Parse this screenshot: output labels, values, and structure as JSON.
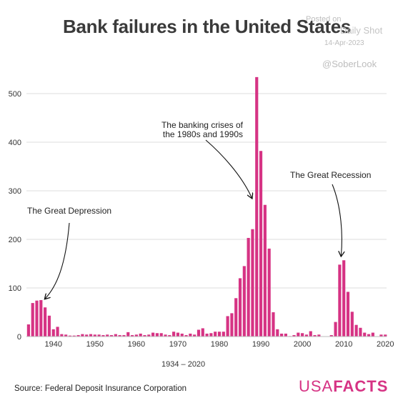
{
  "chart_data": {
    "type": "bar",
    "title": "Bank failures in the United States",
    "xlabel": "1934 – 2020",
    "ylabel": "",
    "ylim": [
      0,
      530
    ],
    "xlim": [
      1934,
      2020
    ],
    "yticks": [
      0,
      100,
      200,
      300,
      400,
      500
    ],
    "xticks": [
      1940,
      1950,
      1960,
      1970,
      1980,
      1990,
      2000,
      2010,
      2020
    ],
    "grid": true,
    "bar_color": "#d63384",
    "x": [
      1934,
      1935,
      1936,
      1937,
      1938,
      1939,
      1940,
      1941,
      1942,
      1943,
      1944,
      1945,
      1946,
      1947,
      1948,
      1949,
      1950,
      1951,
      1952,
      1953,
      1954,
      1955,
      1956,
      1957,
      1958,
      1959,
      1960,
      1961,
      1962,
      1963,
      1964,
      1965,
      1966,
      1967,
      1968,
      1969,
      1970,
      1971,
      1972,
      1973,
      1974,
      1975,
      1976,
      1977,
      1978,
      1979,
      1980,
      1981,
      1982,
      1983,
      1984,
      1985,
      1986,
      1987,
      1988,
      1989,
      1990,
      1991,
      1992,
      1993,
      1994,
      1995,
      1996,
      1997,
      1998,
      1999,
      2000,
      2001,
      2002,
      2003,
      2004,
      2005,
      2006,
      2007,
      2008,
      2009,
      2010,
      2011,
      2012,
      2013,
      2014,
      2015,
      2016,
      2017,
      2018,
      2019,
      2020
    ],
    "values": [
      25,
      69,
      74,
      75,
      60,
      43,
      15,
      20,
      5,
      4,
      2,
      2,
      3,
      5,
      4,
      5,
      4,
      4,
      3,
      4,
      3,
      5,
      3,
      3,
      9,
      3,
      4,
      6,
      3,
      4,
      8,
      7,
      7,
      4,
      3,
      10,
      8,
      6,
      3,
      6,
      4,
      14,
      17,
      6,
      7,
      10,
      10,
      10,
      42,
      48,
      79,
      120,
      145,
      203,
      221,
      534,
      382,
      271,
      181,
      50,
      15,
      6,
      6,
      1,
      3,
      8,
      7,
      4,
      11,
      3,
      4,
      0,
      0,
      3,
      30,
      148,
      157,
      92,
      51,
      24,
      18,
      8,
      5,
      8,
      0,
      4,
      4
    ],
    "annotations": [
      {
        "text": "The Great Depression",
        "year": 1938
      },
      {
        "text_lines": [
          "The banking crises of",
          "the 1980s and 1990s"
        ],
        "year": 1988
      },
      {
        "text": "The Great Recession",
        "year": 2009
      }
    ]
  },
  "watermark": {
    "line1": "Posted on",
    "line2": "Daily Shot",
    "line3": "14-Apr-2023",
    "line4": "@SoberLook"
  },
  "source": "Source: Federal Deposit Insurance Corporation",
  "logo": {
    "part1": "USA",
    "part2": "FACTS"
  }
}
